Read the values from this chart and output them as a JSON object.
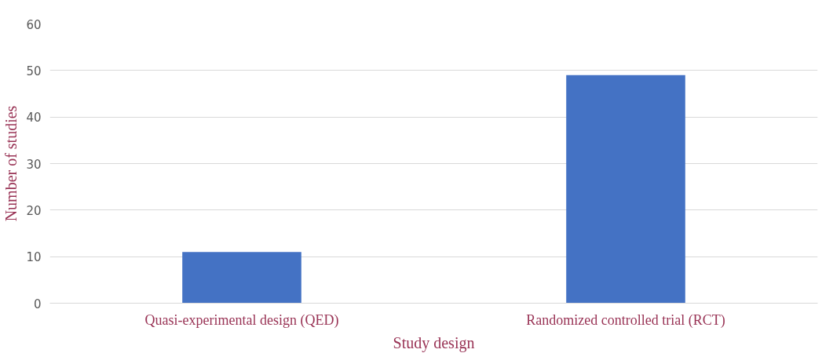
{
  "chart_data": {
    "type": "bar",
    "xlabel": "Study design",
    "ylabel": "Number of studies",
    "categories": [
      "Quasi-experimental design (QED)",
      "Randomized controlled trial (RCT)"
    ],
    "values": [
      11,
      49
    ],
    "color": "#4472c4",
    "ylim": [
      0,
      60
    ],
    "yticks": [
      0,
      10,
      20,
      30,
      40,
      50,
      60
    ],
    "grid": "y"
  }
}
